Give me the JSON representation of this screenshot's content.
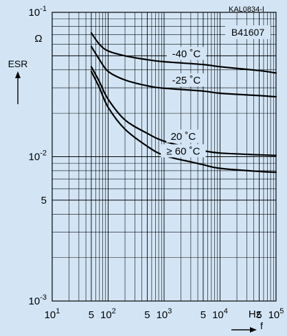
{
  "chart_data": {
    "type": "line",
    "code": "KAL0834-I",
    "part_number": "B41607",
    "y_axis": {
      "label": "ESR",
      "unit": "Ω",
      "scale": "log",
      "range": [
        0.001,
        0.1
      ],
      "ticks": [
        {
          "value": 0.1,
          "mantissa": "10",
          "exponent": "-1"
        },
        {
          "value": 0.01,
          "mantissa": "10",
          "exponent": "-2"
        },
        {
          "value": 0.005,
          "mantissa": "5",
          "exponent": ""
        },
        {
          "value": 0.001,
          "mantissa": "10",
          "exponent": "-3"
        }
      ]
    },
    "x_axis": {
      "label": "f",
      "unit": "Hz",
      "scale": "log",
      "range": [
        10,
        100000
      ],
      "ticks": [
        {
          "value": 10,
          "mantissa": "10",
          "exponent": "1"
        },
        {
          "value": 50,
          "mantissa": "5",
          "exponent": ""
        },
        {
          "value": 100,
          "mantissa": "10",
          "exponent": "2"
        },
        {
          "value": 500,
          "mantissa": "5",
          "exponent": ""
        },
        {
          "value": 1000,
          "mantissa": "10",
          "exponent": "3"
        },
        {
          "value": 5000,
          "mantissa": "5",
          "exponent": ""
        },
        {
          "value": 10000,
          "mantissa": "10",
          "exponent": "4"
        },
        {
          "value": 50000,
          "mantissa": "5",
          "exponent": ""
        },
        {
          "value": 100000,
          "mantissa": "10",
          "exponent": "5"
        }
      ]
    },
    "series": [
      {
        "name": "-40 ˚C",
        "points": [
          [
            50,
            0.072
          ],
          [
            70,
            0.06
          ],
          [
            100,
            0.054
          ],
          [
            200,
            0.05
          ],
          [
            500,
            0.047
          ],
          [
            1000,
            0.0455
          ],
          [
            5000,
            0.0435
          ],
          [
            10000,
            0.042
          ],
          [
            50000,
            0.0395
          ],
          [
            100000,
            0.038
          ]
        ]
      },
      {
        "name": "-25 ˚C",
        "points": [
          [
            50,
            0.058
          ],
          [
            70,
            0.047
          ],
          [
            100,
            0.039
          ],
          [
            200,
            0.034
          ],
          [
            500,
            0.031
          ],
          [
            1000,
            0.0298
          ],
          [
            5000,
            0.0285
          ],
          [
            10000,
            0.0275
          ],
          [
            50000,
            0.0265
          ],
          [
            100000,
            0.026
          ]
        ]
      },
      {
        "name": "20 ˚C",
        "points": [
          [
            50,
            0.042
          ],
          [
            70,
            0.033
          ],
          [
            100,
            0.025
          ],
          [
            200,
            0.018
          ],
          [
            500,
            0.0145
          ],
          [
            1000,
            0.0128
          ],
          [
            3000,
            0.0115
          ],
          [
            5000,
            0.011
          ],
          [
            10000,
            0.0106
          ],
          [
            50000,
            0.0103
          ],
          [
            100000,
            0.0102
          ]
        ]
      },
      {
        "name": "≥ 60 ˚C",
        "points": [
          [
            50,
            0.039
          ],
          [
            70,
            0.03
          ],
          [
            100,
            0.022
          ],
          [
            200,
            0.0155
          ],
          [
            500,
            0.0118
          ],
          [
            1000,
            0.0102
          ],
          [
            3000,
            0.0092
          ],
          [
            5000,
            0.0088
          ],
          [
            10000,
            0.0083
          ],
          [
            50000,
            0.0079
          ],
          [
            100000,
            0.0078
          ]
        ]
      }
    ],
    "grid": true
  }
}
